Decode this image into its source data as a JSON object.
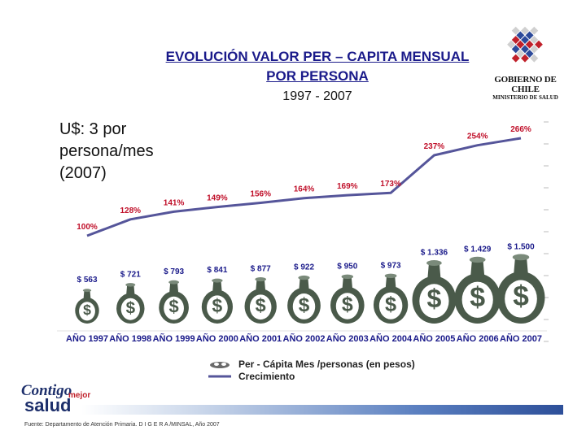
{
  "title_line1": "EVOLUCIÓN VALOR PER – CAPITA MENSUAL",
  "title_line2": "POR PERSONA",
  "subtitle": "1997 - 2007",
  "side_note": {
    "line1": "U$: 3 por",
    "line2": "persona/mes",
    "line3": "(2007)"
  },
  "logo": {
    "name": "GOBIERNO DE CHILE",
    "sub": "MINISTERIO DE SALUD"
  },
  "footer": {
    "brand_contigo": "Contigo",
    "brand_mejor": "mejor",
    "brand_salud": "salud",
    "source": "Fuente: Departamento de Atención Primaria. D I G E R A /MINSAL, Año 2007"
  },
  "colors": {
    "title": "#1a1a8a",
    "line": "#55559a",
    "bag": "#4a5a4a",
    "label": "#1a1a8a",
    "growth_label": "#c0102a"
  },
  "chart_data": {
    "type": "bar",
    "categories": [
      "AÑO 1997",
      "AÑO 1998",
      "AÑO 1999",
      "AÑO 2000",
      "AÑO 2001",
      "AÑO 2002",
      "AÑO 2003",
      "AÑO 2004",
      "AÑO 2005",
      "AÑO 2006",
      "AÑO 2007"
    ],
    "series": [
      {
        "name": "Per - Cápita Mes /personas (en pesos)",
        "values": [
          563,
          721,
          793,
          841,
          877,
          922,
          950,
          973,
          1336,
          1429,
          1500
        ],
        "labels": [
          "$ 563",
          "$ 721",
          "$ 793",
          "$ 841",
          "$ 877",
          "$ 922",
          "$ 950",
          "$ 973",
          "$ 1.336",
          "$ 1.429",
          "$ 1.500"
        ]
      },
      {
        "name": "Crecimiento",
        "type": "line",
        "values": [
          100,
          128,
          141,
          149,
          156,
          164,
          169,
          173,
          237,
          254,
          266
        ],
        "labels": [
          "100%",
          "128%",
          "141%",
          "149%",
          "156%",
          "164%",
          "169%",
          "173%",
          "237%",
          "254%",
          "266%"
        ]
      }
    ],
    "legend": [
      "Per - Cápita Mes /personas (en pesos)",
      "Crecimiento"
    ],
    "legend_position": "bottom"
  }
}
